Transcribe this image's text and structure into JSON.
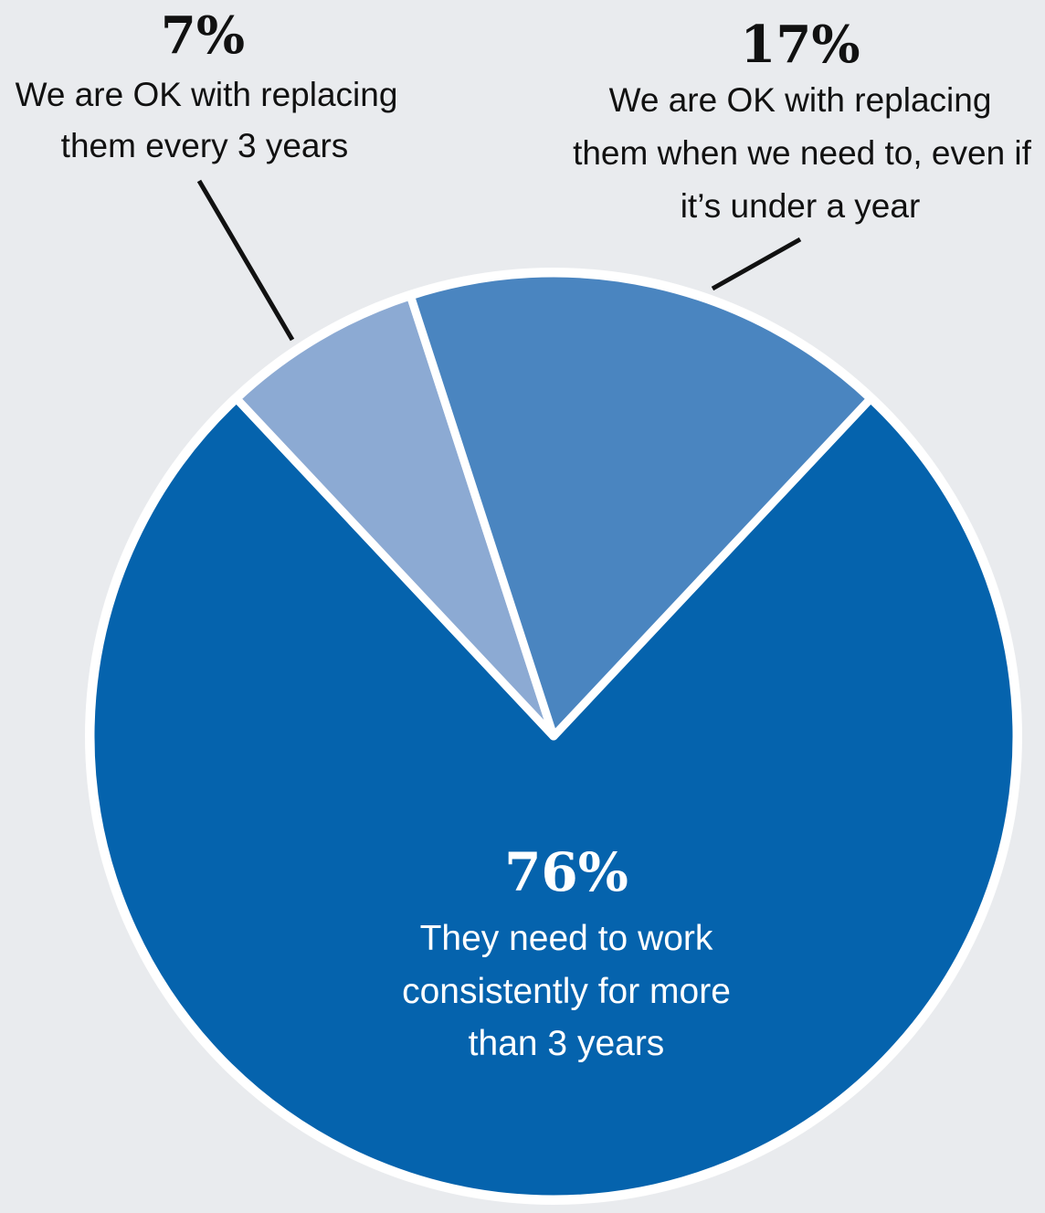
{
  "chart_data": {
    "type": "pie",
    "slices": [
      {
        "name": "They need to work consistently for more than 3 years",
        "value": 76,
        "label_value": "76%",
        "label_lines": [
          "They need to work",
          "consistently for more",
          "than 3 years"
        ],
        "color": "#0563ad",
        "label_color": "#ffffff"
      },
      {
        "name": "We are OK with replacing them every 3 years",
        "value": 7,
        "label_value": "7%",
        "label_lines": [
          "We are OK with replacing",
          "them every 3 years"
        ],
        "color": "#8caad3",
        "label_color": "#111111"
      },
      {
        "name": "We are OK with replacing them when we need to, even if it's under a year",
        "value": 17,
        "label_value": "17%",
        "label_lines": [
          "We are OK with replacing",
          "them when we need to, even if",
          "it’s under a year"
        ],
        "color": "#4a85c0",
        "label_color": "#111111"
      }
    ],
    "legend": "none",
    "background": "#e9ebee",
    "separator_color": "#ffffff"
  }
}
